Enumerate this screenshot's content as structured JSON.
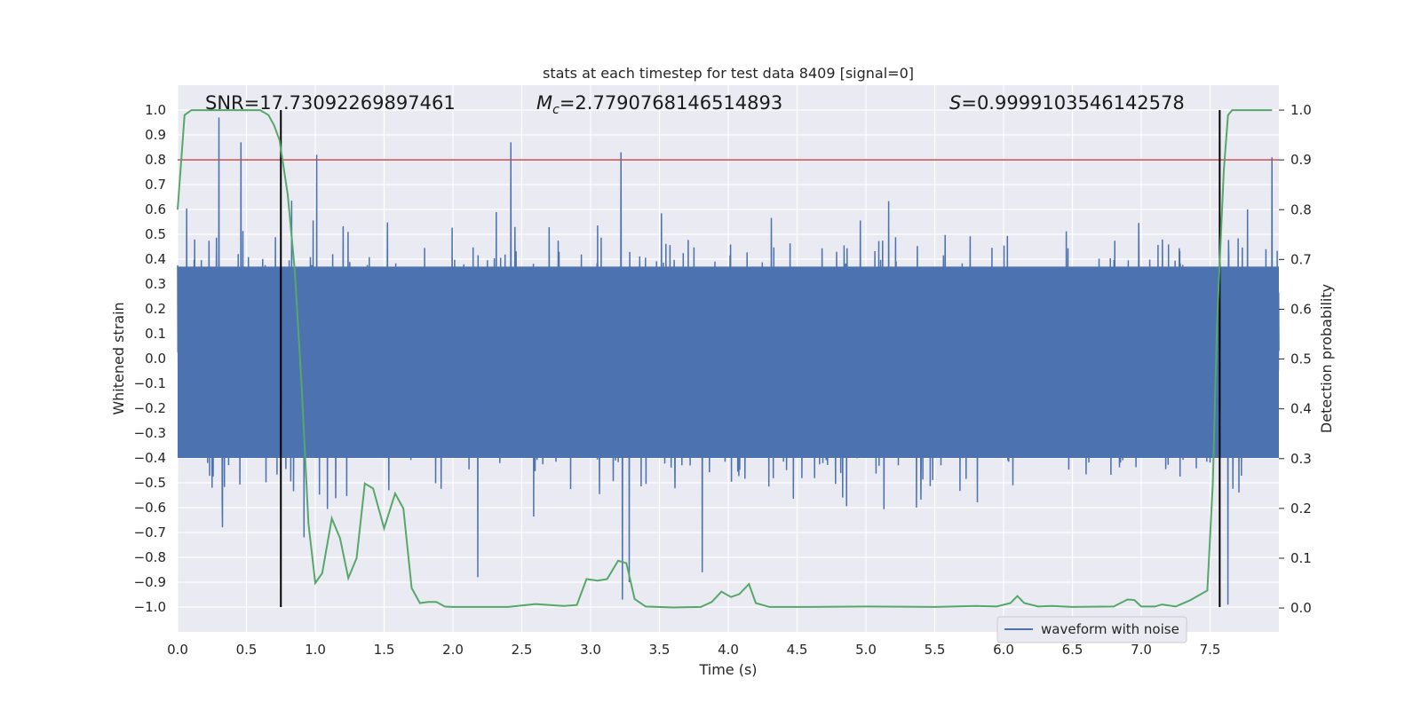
{
  "chart_data": {
    "type": "line",
    "title": "stats at each timestep for test data 8409 [signal=0]",
    "xlabel": "Time (s)",
    "ylabel": "Whitened strain",
    "y2label": "Detection probability",
    "xlim": [
      0.0,
      8.0
    ],
    "ylim": [
      -1.1,
      1.1
    ],
    "y2lim": [
      -0.048,
      1.05
    ],
    "xticks": [
      "0.0",
      "0.5",
      "1.0",
      "1.5",
      "2.0",
      "2.5",
      "3.0",
      "3.5",
      "4.0",
      "4.5",
      "5.0",
      "5.5",
      "6.0",
      "6.5",
      "7.0",
      "7.5"
    ],
    "yticks": [
      "1.0",
      "0.9",
      "0.8",
      "0.7",
      "0.6",
      "0.5",
      "0.4",
      "0.3",
      "0.2",
      "0.1",
      "0.0",
      "−0.1",
      "−0.2",
      "−0.3",
      "−0.4",
      "−0.5",
      "−0.6",
      "−0.7",
      "−0.8",
      "−0.9",
      "−1.0"
    ],
    "y2ticks": [
      "1.0",
      "0.9",
      "0.8",
      "0.7",
      "0.6",
      "0.5",
      "0.4",
      "0.3",
      "0.2",
      "0.1",
      "0.0"
    ],
    "annotations": {
      "snr": "SNR=17.73092269897461",
      "mc_symbol": "M",
      "mc_sub": "c",
      "mc_value": "=2.7790768146514893",
      "s_symbol": "S",
      "s_value": "=0.9999103546142578"
    },
    "legend": {
      "label": "waveform with noise",
      "location": "lower-right"
    },
    "threshold_line": {
      "y2": 0.9,
      "color": "#c44e52"
    },
    "vertical_markers": [
      {
        "x": 0.75,
        "y_range": [
          -1.0,
          1.0
        ],
        "color": "#000000"
      },
      {
        "x": 7.57,
        "y_range": [
          -1.0,
          1.0
        ],
        "color": "#000000"
      }
    ],
    "series": [
      {
        "name": "waveform with noise",
        "axis": "left",
        "color": "#4c72b0",
        "description": "dense whitened noise, roughly uniform amplitude",
        "core_band": [
          -0.4,
          0.37
        ],
        "max_positive_spikes": [
          {
            "x": 0.3,
            "y": 0.97
          },
          {
            "x": 0.46,
            "y": 0.87
          },
          {
            "x": 1.01,
            "y": 0.82
          },
          {
            "x": 2.42,
            "y": 0.87
          },
          {
            "x": 3.22,
            "y": 0.83
          },
          {
            "x": 7.95,
            "y": 0.81
          }
        ],
        "max_negative_spikes": [
          {
            "x": 2.18,
            "y": -0.88
          },
          {
            "x": 3.23,
            "y": -0.97
          },
          {
            "x": 3.28,
            "y": -0.9
          },
          {
            "x": 3.81,
            "y": -0.86
          },
          {
            "x": 7.63,
            "y": -0.99
          }
        ]
      },
      {
        "name": "detection probability",
        "axis": "right",
        "color": "#55a868",
        "x": [
          0.0,
          0.05,
          0.1,
          0.2,
          0.3,
          0.4,
          0.5,
          0.6,
          0.66,
          0.7,
          0.74,
          0.8,
          0.85,
          0.9,
          0.95,
          1.0,
          1.05,
          1.12,
          1.18,
          1.24,
          1.3,
          1.36,
          1.42,
          1.5,
          1.58,
          1.64,
          1.7,
          1.76,
          1.82,
          1.88,
          1.94,
          2.0,
          2.2,
          2.4,
          2.6,
          2.8,
          2.9,
          2.97,
          3.05,
          3.12,
          3.2,
          3.26,
          3.32,
          3.4,
          3.6,
          3.8,
          3.88,
          3.95,
          4.02,
          4.08,
          4.15,
          4.2,
          4.3,
          4.6,
          5.0,
          5.5,
          5.8,
          5.95,
          6.05,
          6.1,
          6.15,
          6.25,
          6.35,
          6.5,
          6.8,
          6.9,
          6.95,
          7.0,
          7.1,
          7.15,
          7.25,
          7.35,
          7.48,
          7.52,
          7.55,
          7.6,
          7.63,
          7.66,
          7.75,
          7.85,
          7.95
        ],
        "y": [
          0.8,
          0.99,
          1.0,
          1.0,
          1.0,
          1.0,
          1.0,
          1.0,
          0.99,
          0.97,
          0.94,
          0.83,
          0.68,
          0.45,
          0.17,
          0.05,
          0.07,
          0.18,
          0.14,
          0.06,
          0.1,
          0.25,
          0.24,
          0.16,
          0.23,
          0.2,
          0.04,
          0.01,
          0.012,
          0.012,
          0.003,
          0.002,
          0.002,
          0.002,
          0.008,
          0.004,
          0.006,
          0.058,
          0.055,
          0.058,
          0.095,
          0.09,
          0.018,
          0.003,
          0.001,
          0.002,
          0.012,
          0.033,
          0.022,
          0.028,
          0.048,
          0.01,
          0.002,
          0.002,
          0.003,
          0.002,
          0.004,
          0.003,
          0.01,
          0.024,
          0.01,
          0.003,
          0.004,
          0.002,
          0.003,
          0.017,
          0.016,
          0.003,
          0.003,
          0.007,
          0.003,
          0.015,
          0.035,
          0.25,
          0.57,
          0.88,
          0.99,
          1.0,
          1.0,
          1.0,
          1.0
        ]
      }
    ]
  }
}
